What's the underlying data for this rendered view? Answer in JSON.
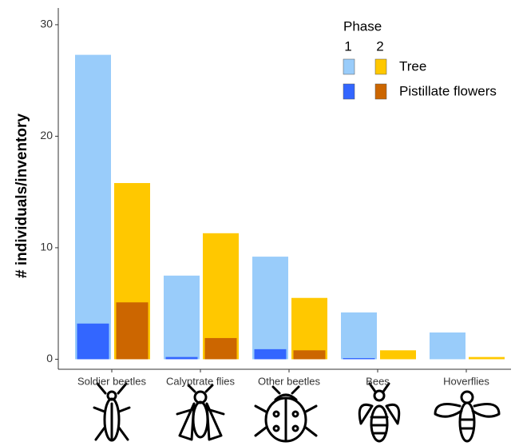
{
  "chart_data": {
    "type": "bar",
    "y_label": "# individuals/inventory",
    "categories": [
      "Soldier beetles",
      "Calyptrate flies",
      "Other beetles",
      "Bees",
      "Hoverflies"
    ],
    "legend_title": "Phase",
    "phases": [
      "1",
      "2"
    ],
    "series": [
      {
        "name": "Tree",
        "phase": "1",
        "color": "#99ccfa",
        "values": [
          27.3,
          7.5,
          9.2,
          4.2,
          2.4
        ]
      },
      {
        "name": "Tree",
        "phase": "2",
        "color": "#ffc800",
        "values": [
          15.8,
          11.3,
          5.5,
          0.8,
          0.2
        ]
      },
      {
        "name": "Pistillate flowers",
        "phase": "1",
        "color": "#3366ff",
        "values": [
          3.2,
          0.2,
          0.9,
          0.1,
          0
        ]
      },
      {
        "name": "Pistillate flowers",
        "phase": "2",
        "color": "#cc6600",
        "values": [
          5.1,
          1.9,
          0.8,
          0,
          0
        ]
      }
    ],
    "ylim": [
      -0.9,
      31.5
    ],
    "yticks": [
      0,
      10,
      20,
      30
    ],
    "grid": false,
    "legend_position": "top-right"
  }
}
